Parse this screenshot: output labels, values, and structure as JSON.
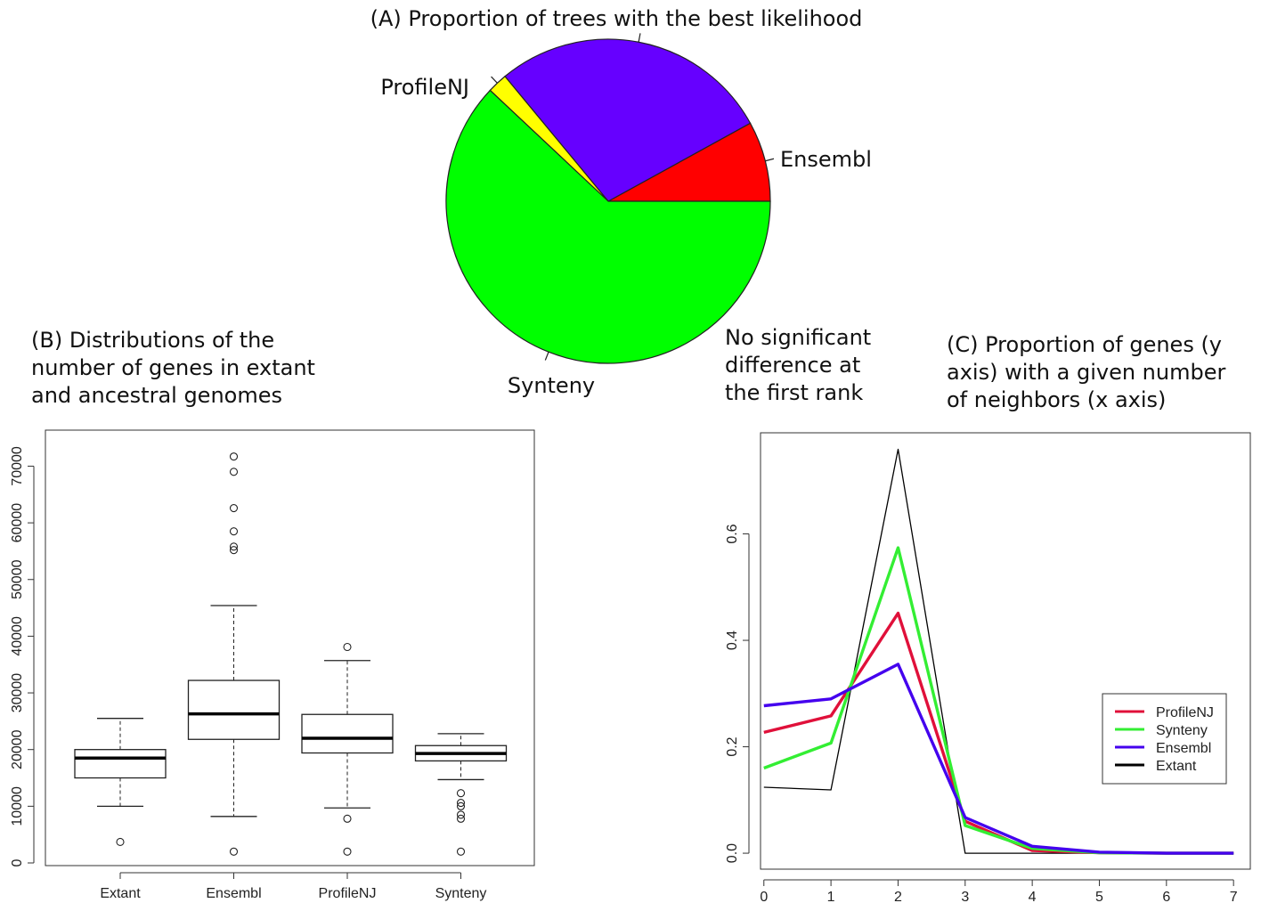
{
  "chart_data": [
    {
      "type": "pie",
      "title": "(A) Proportion of trees with the best likelihood",
      "slices": [
        {
          "label": "Ensembl",
          "value": 8.0,
          "color": "#ff0000"
        },
        {
          "label": "No significant difference at the first rank",
          "label_lines": [
            "No significant",
            "difference at",
            "the first rank"
          ],
          "value": 28.0,
          "color": "#6600ff"
        },
        {
          "label": "Synteny",
          "value": 2.0,
          "color": "#ffff00"
        },
        {
          "label": "ProfileNJ",
          "value": 62.0,
          "color": "#00ff00"
        }
      ]
    },
    {
      "type": "box",
      "title": "(B) Distributions of the number of genes in extant and ancestral genomes",
      "title_lines": [
        "(B) Distributions of the",
        "number of genes in extant",
        "and ancestral genomes"
      ],
      "categories": [
        "Extant",
        "Ensembl",
        "ProfileNJ",
        "Synteny"
      ],
      "ylim": [
        0,
        74000
      ],
      "yticks": [
        "0",
        "10000",
        "20000",
        "30000",
        "40000",
        "50000",
        "60000",
        "70000"
      ],
      "boxes": [
        {
          "name": "Extant",
          "whisker_low": 10000,
          "q1": 15000,
          "median": 18500,
          "q3": 20000,
          "whisker_high": 25500,
          "outliers": [
            3700
          ]
        },
        {
          "name": "Ensembl",
          "whisker_low": 8200,
          "q1": 21800,
          "median": 26300,
          "q3": 32200,
          "whisker_high": 45400,
          "outliers": [
            2000,
            55200,
            55800,
            58500,
            62600,
            69000,
            71700
          ]
        },
        {
          "name": "ProfileNJ",
          "whisker_low": 9700,
          "q1": 19400,
          "median": 22000,
          "q3": 26200,
          "whisker_high": 35700,
          "outliers": [
            2000,
            7800,
            38100
          ]
        },
        {
          "name": "Synteny",
          "whisker_low": 14700,
          "q1": 18000,
          "median": 19300,
          "q3": 20700,
          "whisker_high": 22800,
          "outliers": [
            2000,
            7800,
            8500,
            10000,
            10600,
            12300
          ]
        }
      ]
    },
    {
      "type": "line",
      "title": "(C) Proportion of genes (y axis) with a given number of neighbors (x axis)",
      "title_lines": [
        "(C) Proportion of genes (y",
        "axis) with a given number",
        "of neighbors (x axis)"
      ],
      "x": [
        0,
        1,
        2,
        3,
        4,
        5,
        6,
        7
      ],
      "xlim": [
        -0.05,
        7.25
      ],
      "ylim": [
        0,
        0.76
      ],
      "xticks": [
        "0",
        "1",
        "2",
        "3",
        "4",
        "5",
        "6",
        "7"
      ],
      "yticks": [
        "0.0",
        "0.2",
        "0.4",
        "0.6"
      ],
      "legend_position": "right",
      "series": [
        {
          "name": "ProfileNJ",
          "color": "#e0103a",
          "values": [
            0.227,
            0.258,
            0.451,
            0.06,
            0.005,
            0.001,
            0.0,
            0.0
          ]
        },
        {
          "name": "Synteny",
          "color": "#33ee33",
          "values": [
            0.16,
            0.207,
            0.574,
            0.052,
            0.009,
            0.001,
            0.0,
            0.0
          ]
        },
        {
          "name": "Ensembl",
          "color": "#4400ee",
          "values": [
            0.277,
            0.29,
            0.355,
            0.067,
            0.013,
            0.002,
            0.0,
            0.0
          ]
        },
        {
          "name": "Extant",
          "color": "#000000",
          "values": [
            0.124,
            0.119,
            0.759,
            0.0,
            0.0,
            0.0,
            0.0,
            0.0
          ]
        }
      ]
    }
  ]
}
